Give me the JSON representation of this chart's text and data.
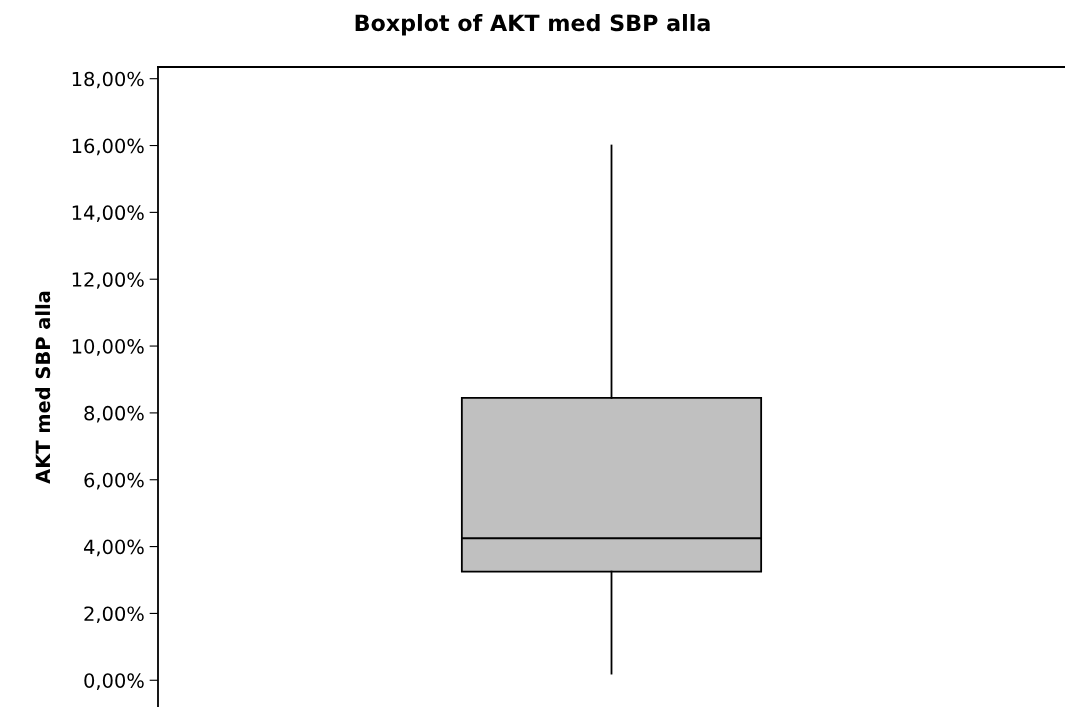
{
  "chart_data": {
    "type": "box",
    "title": "Boxplot of AKT med SBP alla",
    "ylabel": "AKT med SBP alla",
    "categories": [
      null
    ],
    "series": [
      {
        "color": "#c0c0c0",
        "boxes": [
          {
            "low": 0.2,
            "q1": 3.25,
            "median": 4.25,
            "q3": 8.45,
            "high": 16
          }
        ]
      }
    ],
    "ylim": [
      -0.8,
      18.35
    ],
    "yticks": [
      {
        "value": 0,
        "label": "0,00%"
      },
      {
        "value": 2,
        "label": "2,00%"
      },
      {
        "value": 4,
        "label": "4,00%"
      },
      {
        "value": 6,
        "label": "6,00%"
      },
      {
        "value": 8,
        "label": "8,00%"
      },
      {
        "value": 10,
        "label": "10,00%"
      },
      {
        "value": 12,
        "label": "12,00%"
      },
      {
        "value": 14,
        "label": "14,00%"
      },
      {
        "value": 16,
        "label": "16,00%"
      },
      {
        "value": 18,
        "label": "18,00%"
      }
    ],
    "grid": false,
    "legend": false,
    "tick_labels": "y"
  }
}
